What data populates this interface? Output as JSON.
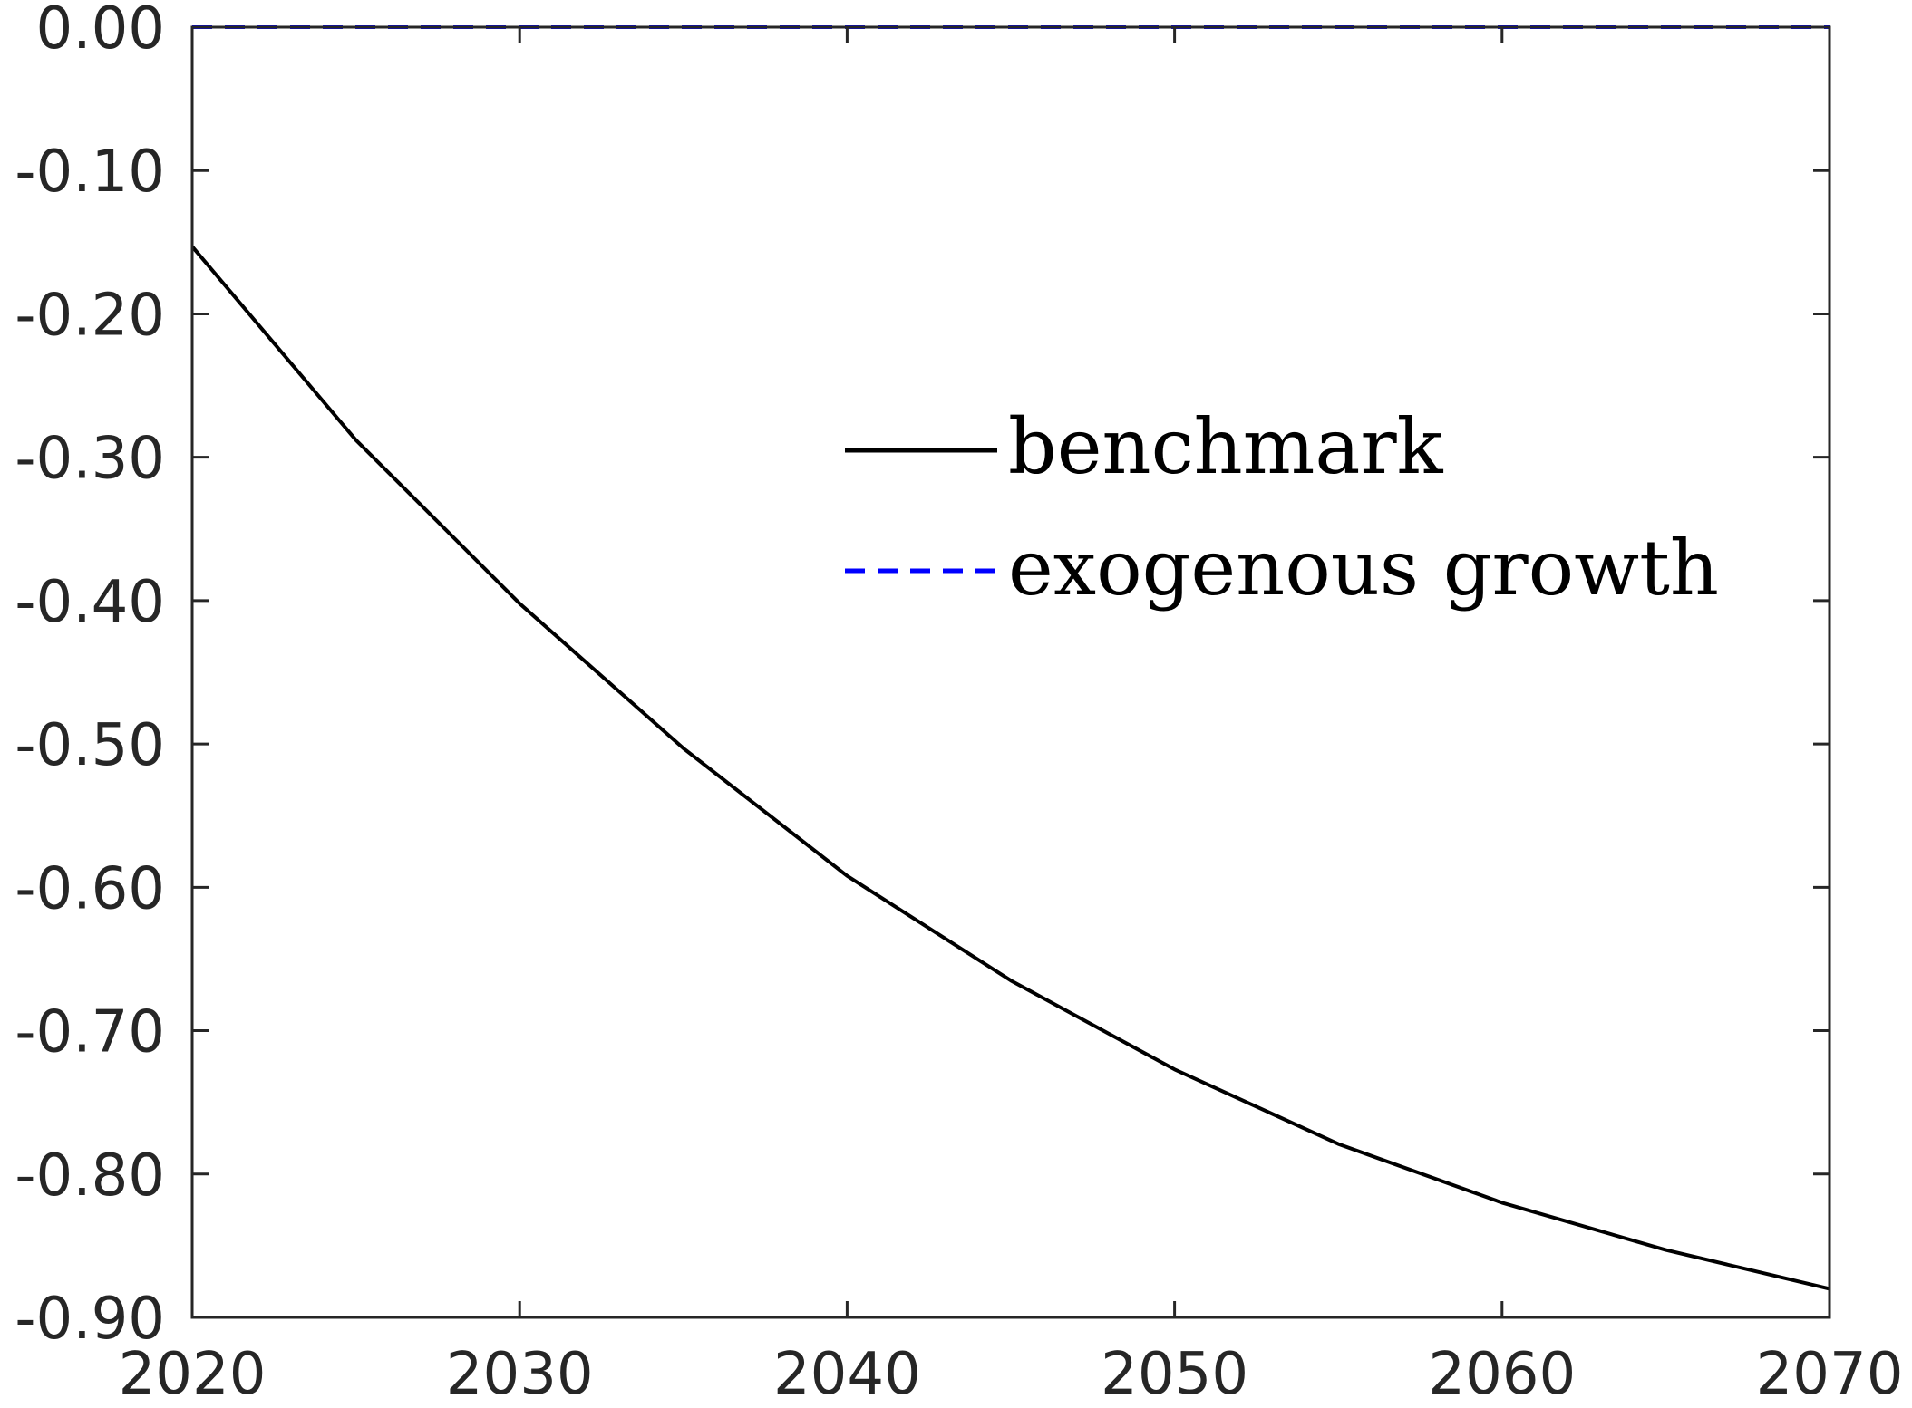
{
  "chart_data": {
    "type": "line",
    "title": "",
    "xlabel": "",
    "ylabel": "",
    "xlim": [
      2020,
      2070
    ],
    "ylim": [
      -0.9,
      0.0
    ],
    "xticks": [
      2020,
      2030,
      2040,
      2050,
      2060,
      2070
    ],
    "xtick_labels": [
      "2020",
      "2030",
      "2040",
      "2050",
      "2060",
      "2070"
    ],
    "yticks": [
      0.0,
      -0.1,
      -0.2,
      -0.3,
      -0.4,
      -0.5,
      -0.6,
      -0.7,
      -0.8,
      -0.9
    ],
    "ytick_labels": [
      "0.00",
      "-0.10",
      "-0.20",
      "-0.30",
      "-0.40",
      "-0.50",
      "-0.60",
      "-0.70",
      "-0.80",
      "-0.90"
    ],
    "grid": false,
    "legend_position": "center-right",
    "x": [
      2020,
      2025,
      2030,
      2035,
      2040,
      2045,
      2050,
      2055,
      2060,
      2065,
      2070
    ],
    "series": [
      {
        "name": "benchmark",
        "color": "#000000",
        "line_style": "solid",
        "values": [
          -0.153,
          -0.288,
          -0.402,
          -0.503,
          -0.592,
          -0.665,
          -0.727,
          -0.779,
          -0.82,
          -0.853,
          -0.88
        ]
      },
      {
        "name": "exogenous growth",
        "color": "#0000ff",
        "line_style": "dashed",
        "values": [
          0.0,
          0.0,
          0.0,
          0.0,
          0.0,
          0.0,
          0.0,
          0.0,
          0.0,
          0.0,
          0.0
        ]
      }
    ]
  }
}
